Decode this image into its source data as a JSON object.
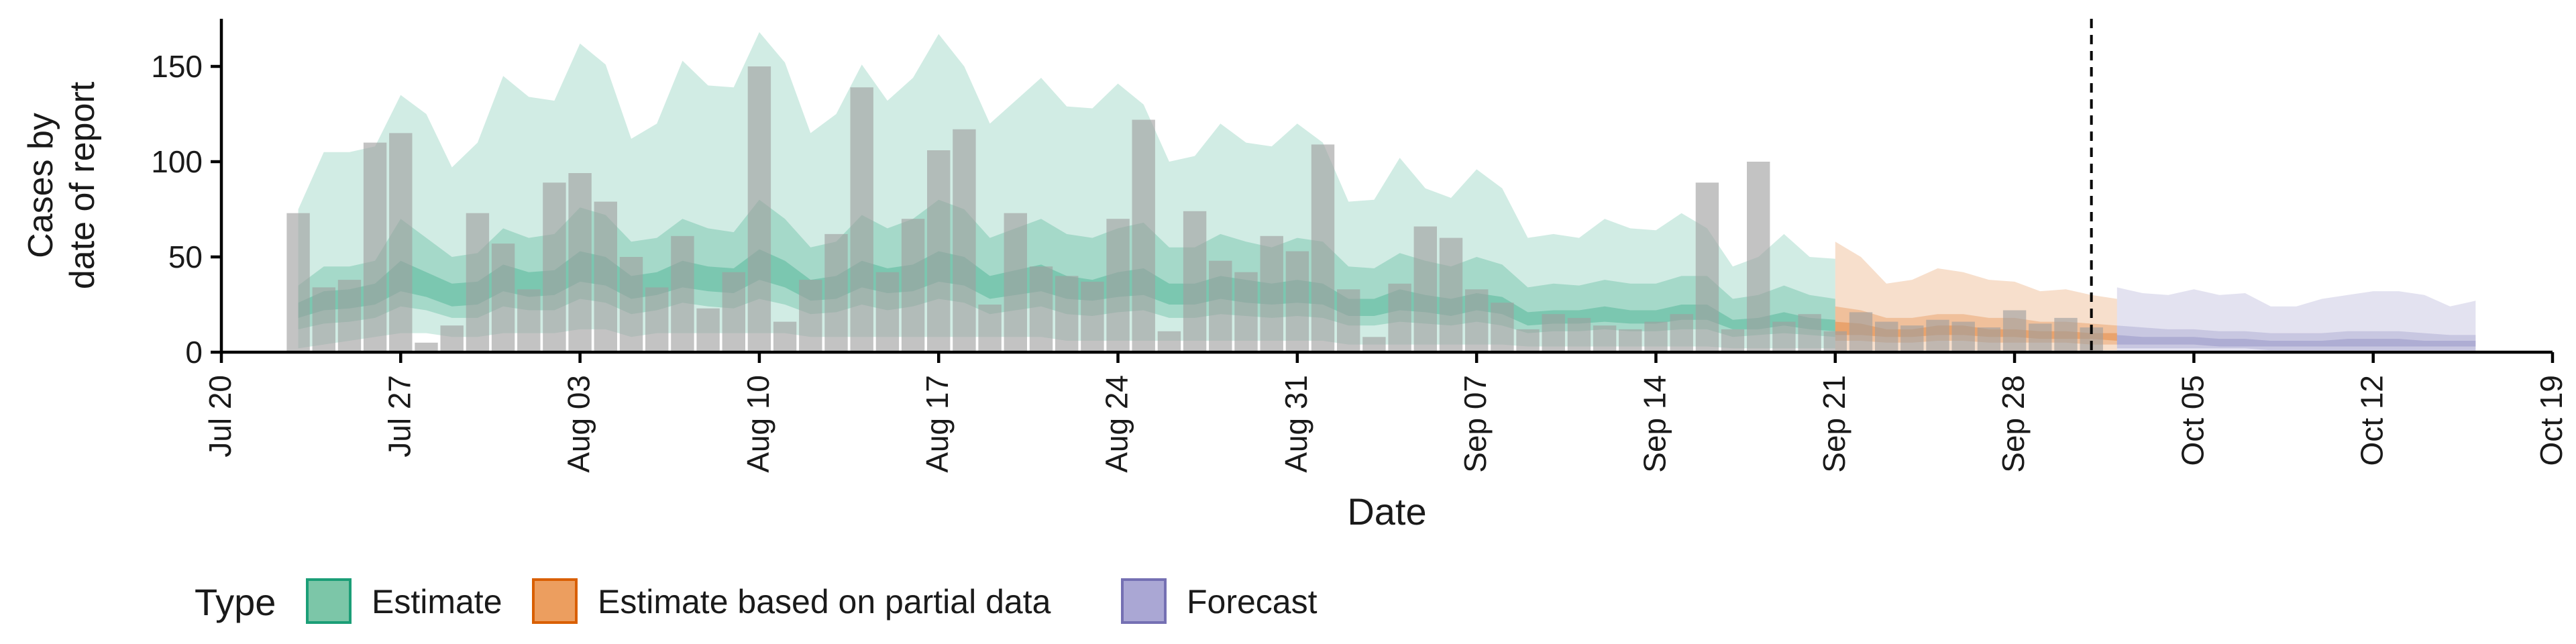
{
  "chart_data": {
    "type": "bar",
    "xlabel": "Date",
    "ylabel_lines": [
      "Cases by",
      "date of report"
    ],
    "x_range": [
      "2020-07-20",
      "2020-10-19"
    ],
    "ylim": [
      0,
      175
    ],
    "y_ticks": [
      0,
      50,
      100,
      150
    ],
    "x_ticks": [
      {
        "date": "2020-07-20",
        "label": "Jul 20"
      },
      {
        "date": "2020-07-27",
        "label": "Jul 27"
      },
      {
        "date": "2020-08-03",
        "label": "Aug 03"
      },
      {
        "date": "2020-08-10",
        "label": "Aug 10"
      },
      {
        "date": "2020-08-17",
        "label": "Aug 17"
      },
      {
        "date": "2020-08-24",
        "label": "Aug 24"
      },
      {
        "date": "2020-08-31",
        "label": "Aug 31"
      },
      {
        "date": "2020-09-07",
        "label": "Sep 07"
      },
      {
        "date": "2020-09-14",
        "label": "Sep 14"
      },
      {
        "date": "2020-09-21",
        "label": "Sep 21"
      },
      {
        "date": "2020-09-28",
        "label": "Sep 28"
      },
      {
        "date": "2020-10-05",
        "label": "Oct 05"
      },
      {
        "date": "2020-10-12",
        "label": "Oct 12"
      },
      {
        "date": "2020-10-19",
        "label": "Oct 19"
      }
    ],
    "bars_start_date": "2020-07-23",
    "reported_cases": [
      73,
      34,
      38,
      110,
      115,
      5,
      14,
      73,
      57,
      33,
      89,
      94,
      79,
      50,
      34,
      61,
      23,
      42,
      150,
      16,
      38,
      62,
      139,
      42,
      70,
      106,
      117,
      25,
      73,
      45,
      40,
      37,
      70,
      122,
      11,
      74,
      48,
      42,
      61,
      53,
      109,
      33,
      8,
      36,
      66,
      60,
      33,
      26,
      12,
      20,
      18,
      14,
      12,
      16,
      20,
      89,
      12,
      100,
      16,
      20,
      11,
      21,
      16,
      14,
      17,
      16,
      13,
      22,
      15,
      18,
      13
    ],
    "vertical_line_date": "2020-10-01",
    "legend": {
      "title": "Type",
      "position": "bottom-left",
      "entries": [
        {
          "label": "Estimate",
          "fill": "#7cc6a8",
          "stroke": "#1b9e77"
        },
        {
          "label": "Estimate based on partial data",
          "fill": "#ec9e5f",
          "stroke": "#d95f02"
        },
        {
          "label": "Forecast",
          "fill": "#aaa7d4",
          "stroke": "#7570b3"
        }
      ]
    },
    "series": [
      {
        "name": "Estimate",
        "color": "#1b9e77",
        "start_date": "2020-07-23",
        "upper90": [
          75,
          105,
          105,
          108,
          135,
          125,
          97,
          110,
          145,
          134,
          132,
          162,
          151,
          112,
          120,
          153,
          140,
          139,
          168,
          152,
          115,
          125,
          151,
          132,
          144,
          167,
          150,
          120,
          132,
          144,
          129,
          128,
          141,
          130,
          100,
          103,
          120,
          110,
          108,
          120,
          110,
          79,
          80,
          102,
          86,
          81,
          96,
          86,
          60,
          62,
          60,
          70,
          65,
          64,
          73,
          65,
          45,
          50,
          62,
          50,
          49
        ],
        "lower90": [
          2,
          4,
          6,
          8,
          10,
          10,
          8,
          8,
          10,
          10,
          10,
          12,
          12,
          8,
          10,
          10,
          10,
          10,
          10,
          10,
          8,
          8,
          8,
          8,
          8,
          8,
          8,
          8,
          8,
          8,
          6,
          6,
          6,
          6,
          6,
          6,
          6,
          6,
          6,
          6,
          6,
          4,
          4,
          4,
          4,
          4,
          4,
          4,
          3,
          3,
          3,
          3,
          3,
          3,
          3,
          3,
          2,
          2,
          2,
          2,
          2
        ],
        "upper50": [
          35,
          45,
          45,
          48,
          70,
          60,
          50,
          52,
          65,
          60,
          62,
          76,
          72,
          58,
          60,
          70,
          65,
          63,
          80,
          70,
          55,
          58,
          72,
          65,
          70,
          80,
          75,
          60,
          65,
          70,
          62,
          60,
          65,
          68,
          55,
          55,
          62,
          58,
          55,
          60,
          58,
          45,
          44,
          52,
          48,
          45,
          50,
          46,
          34,
          36,
          35,
          38,
          36,
          36,
          40,
          40,
          28,
          30,
          35,
          30,
          28
        ],
        "lower50": [
          12,
          15,
          16,
          18,
          24,
          22,
          18,
          18,
          24,
          22,
          22,
          28,
          26,
          20,
          22,
          26,
          24,
          23,
          28,
          25,
          20,
          21,
          25,
          22,
          24,
          28,
          26,
          20,
          22,
          24,
          20,
          19,
          21,
          22,
          18,
          18,
          20,
          19,
          18,
          19,
          18,
          14,
          14,
          16,
          15,
          14,
          16,
          14,
          10,
          11,
          11,
          12,
          11,
          11,
          12,
          12,
          8,
          9,
          10,
          9,
          8
        ],
        "upper20": [
          26,
          32,
          33,
          36,
          48,
          42,
          36,
          37,
          46,
          42,
          43,
          53,
          50,
          40,
          42,
          48,
          45,
          44,
          54,
          48,
          38,
          40,
          48,
          44,
          46,
          53,
          50,
          40,
          43,
          46,
          40,
          38,
          42,
          44,
          36,
          36,
          40,
          38,
          36,
          38,
          36,
          28,
          28,
          33,
          30,
          28,
          31,
          29,
          21,
          22,
          22,
          24,
          22,
          22,
          25,
          25,
          17,
          18,
          21,
          18,
          17
        ],
        "lower20": [
          18,
          22,
          23,
          25,
          32,
          29,
          24,
          25,
          32,
          29,
          30,
          37,
          35,
          28,
          30,
          34,
          32,
          31,
          38,
          34,
          27,
          28,
          34,
          31,
          32,
          37,
          35,
          28,
          30,
          32,
          28,
          27,
          29,
          30,
          25,
          25,
          28,
          26,
          25,
          26,
          25,
          19,
          19,
          22,
          21,
          19,
          22,
          20,
          14,
          15,
          15,
          16,
          15,
          15,
          17,
          17,
          12,
          12,
          14,
          12,
          11
        ]
      },
      {
        "name": "Estimate based on partial data",
        "color": "#d95f02",
        "start_date": "2020-09-21",
        "upper90": [
          58,
          50,
          36,
          38,
          44,
          42,
          38,
          37,
          32,
          33,
          30,
          28
        ],
        "lower90": [
          1,
          1,
          1,
          1,
          1,
          1,
          1,
          1,
          1,
          1,
          1,
          1
        ],
        "upper50": [
          24,
          22,
          18,
          18,
          20,
          20,
          18,
          18,
          16,
          16,
          15,
          14
        ],
        "lower50": [
          6,
          6,
          5,
          5,
          6,
          6,
          5,
          5,
          5,
          5,
          4,
          4
        ],
        "upper20": [
          16,
          15,
          12,
          12,
          14,
          14,
          12,
          12,
          11,
          11,
          10,
          10
        ],
        "lower20": [
          9,
          9,
          8,
          8,
          9,
          9,
          8,
          8,
          7,
          7,
          7,
          6
        ]
      },
      {
        "name": "Forecast",
        "color": "#7570b3",
        "start_date": "2020-10-02",
        "upper90": [
          34,
          31,
          30,
          33,
          30,
          31,
          24,
          24,
          28,
          30,
          32,
          32,
          30,
          24,
          27
        ],
        "lower90": [
          0,
          0,
          0,
          0,
          0,
          0,
          0,
          0,
          0,
          0,
          0,
          0,
          0,
          0,
          0
        ],
        "upper50": [
          14,
          13,
          12,
          12,
          11,
          11,
          10,
          10,
          10,
          11,
          11,
          11,
          10,
          9,
          9
        ],
        "lower50": [
          2,
          2,
          2,
          2,
          2,
          2,
          1,
          1,
          1,
          1,
          1,
          1,
          1,
          1,
          1
        ],
        "upper20": [
          9,
          8,
          8,
          8,
          7,
          7,
          6,
          6,
          6,
          7,
          7,
          7,
          6,
          6,
          6
        ],
        "lower20": [
          4,
          4,
          4,
          4,
          3,
          3,
          3,
          3,
          3,
          3,
          3,
          3,
          3,
          3,
          3
        ]
      }
    ]
  }
}
